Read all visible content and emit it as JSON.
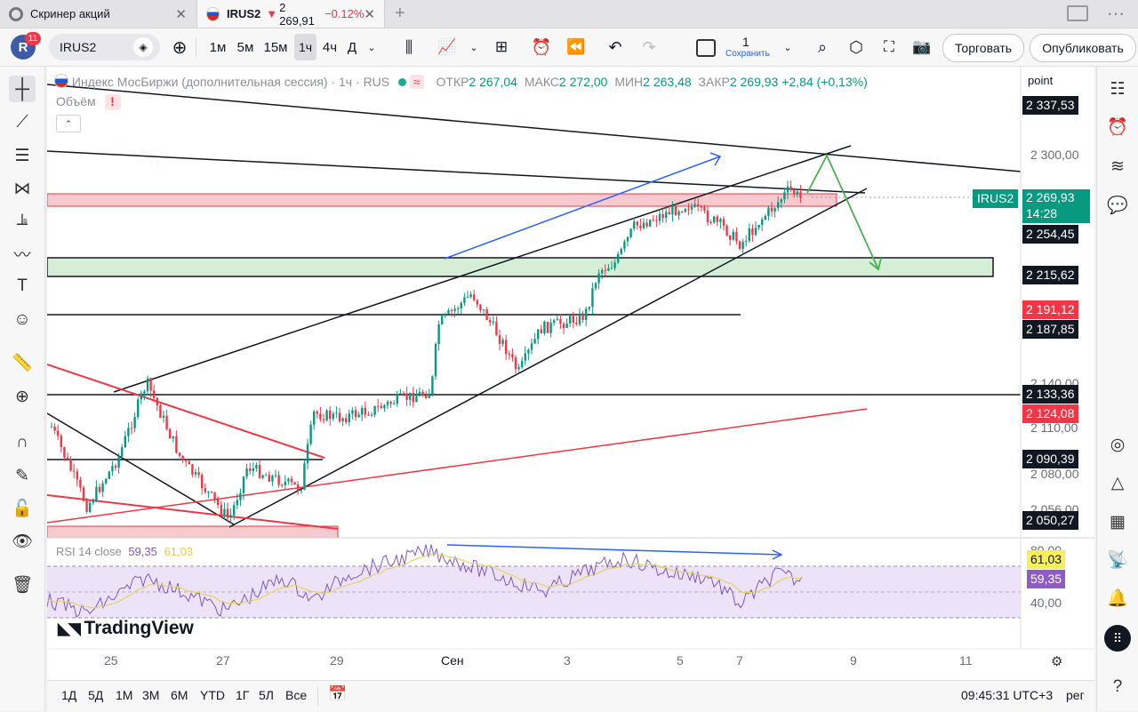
{
  "browser": {
    "tabs": [
      {
        "title": "Скринер акций",
        "active": false
      },
      {
        "title": "IRUS2",
        "price": "2 269,91",
        "change": "−0.12%",
        "active": true
      }
    ],
    "new_tab": "+"
  },
  "toolbar": {
    "avatar_letter": "R",
    "notifications": "11",
    "symbol": "IRUS2",
    "intervals": [
      "1м",
      "5м",
      "15м",
      "1ч",
      "4ч",
      "Д"
    ],
    "active_interval": "1ч",
    "layout_count": "1",
    "save_label": "Сохранить",
    "trade_button": "Торговать",
    "publish_button": "Опубликовать"
  },
  "legend": {
    "title": "Индекс МосБиржи (дополнительная сессия)",
    "interval": "1ч",
    "exchange": "RUS",
    "open_label": "ОТКР",
    "open": "2 267,04",
    "high_label": "МАКС",
    "high": "2 272,00",
    "low_label": "МИН",
    "low": "2 263,48",
    "close_label": "ЗАКР",
    "close": "2 269,93",
    "change": "+2,84 (+0,13%)",
    "volume_label": "Объём"
  },
  "price_scale": {
    "unit_label": "point",
    "ticks": [
      "2 300,00",
      "2 140,00",
      "2 110,00",
      "2 080,00",
      "2 056,00"
    ],
    "labels": [
      {
        "value": "2 337,53",
        "style": "dark"
      },
      {
        "value": "2 254,45",
        "style": "dark"
      },
      {
        "value": "2 215,62",
        "style": "dark"
      },
      {
        "value": "2 191,12",
        "style": "red"
      },
      {
        "value": "2 187,85",
        "style": "dark"
      },
      {
        "value": "2 133,36",
        "style": "dark"
      },
      {
        "value": "2 124,08",
        "style": "red"
      },
      {
        "value": "2 090,39",
        "style": "dark"
      },
      {
        "value": "2 050,27",
        "style": "dark"
      }
    ],
    "last_price": {
      "symbol": "IRUS2",
      "value": "2 269,93",
      "countdown": "14:28",
      "color": "#089981"
    }
  },
  "rsi": {
    "label": "RSI 14 close",
    "value1": "59,35",
    "value2": "61,03",
    "scale": [
      "80,00",
      "40,00"
    ],
    "badge_yellow": "61,03",
    "badge_purple": "59,35"
  },
  "time_axis": [
    "25",
    "27",
    "29",
    "Сен",
    "3",
    "5",
    "7",
    "9",
    "11"
  ],
  "watermark": "TradingView",
  "bottombar": {
    "ranges": [
      "1Д",
      "5Д",
      "1М",
      "3М",
      "6М",
      "YTD",
      "1Г",
      "5Л",
      "Все"
    ],
    "clock": "09:45:31 UTC+3",
    "mode": "рег"
  },
  "colors": {
    "up": "#089981",
    "down": "#f23645",
    "accent": "#2962ff",
    "rsi": "#7e57c2"
  }
}
